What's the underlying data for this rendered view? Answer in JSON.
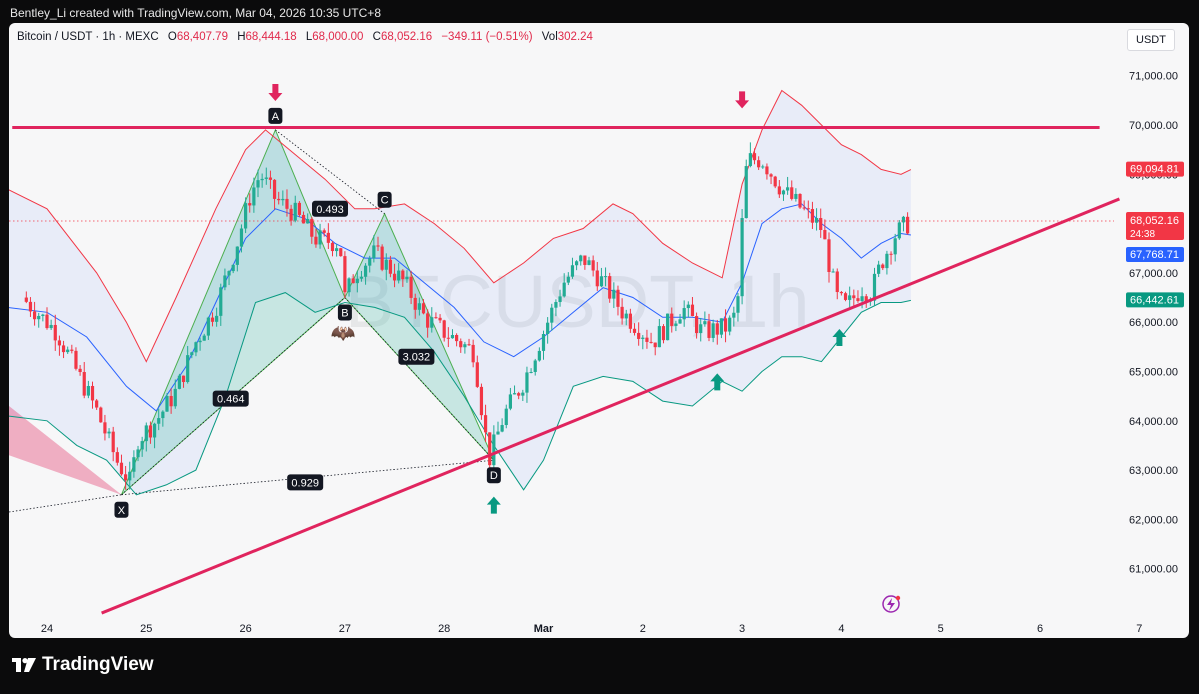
{
  "header": {
    "attribution": "Bentley_Li created with TradingView.com, Mar 04, 2026 10:35 UTC+8"
  },
  "legend": {
    "symbol": "Bitcoin / USDT · 1h · MEXC",
    "open_label": "O",
    "open": "68,407.79",
    "high_label": "H",
    "high": "68,444.18",
    "low_label": "L",
    "low": "68,000.00",
    "close_label": "C",
    "close": "68,052.16",
    "change": "−349.11 (−0.51%)",
    "vol_label": "Vol",
    "vol": "302.24"
  },
  "currency_button": "USDT",
  "watermark": "BTCUSDT, 1h",
  "footer": {
    "brand": "TradingView"
  },
  "colors": {
    "up": "#22ab94",
    "down": "#f23645",
    "pattern_line": "#e0245e",
    "bb_upper": "#f23645",
    "bb_mid": "#2962ff",
    "bb_lower": "#089981",
    "arrow_down": "#e0245e",
    "arrow_up": "#089981"
  },
  "chart_data": {
    "type": "candlestick",
    "symbol": "BTCUSDT",
    "interval": "1h",
    "y_ticks": [
      61000,
      62000,
      63000,
      64000,
      65000,
      66000,
      67000,
      68000,
      69000,
      70000,
      71000
    ],
    "y_tick_labels": [
      "61,000.00",
      "62,000.00",
      "63,000.00",
      "64,000.00",
      "65,000.00",
      "66,000.00",
      "67,000.00",
      "68,000.00",
      "69,000.00",
      "70,000.00",
      "71,000.00"
    ],
    "x_labels": [
      "24",
      "25",
      "26",
      "27",
      "28",
      "Mar",
      "2",
      "3",
      "4",
      "5",
      "6",
      "7"
    ],
    "x_label_days": [
      0,
      1,
      2,
      3,
      4,
      5,
      6,
      7,
      8,
      9,
      10,
      11
    ],
    "price_labels": [
      {
        "value": 69094.81,
        "text": "69,094.81",
        "role": "bb_upper"
      },
      {
        "value": 68052.16,
        "text": "68,052.16",
        "sub": "24:38",
        "role": "last_price"
      },
      {
        "value": 67768.71,
        "text": "67,768.71",
        "role": "bb_mid"
      },
      {
        "value": 66442.61,
        "text": "66,442.61",
        "role": "bb_lower"
      }
    ],
    "price_path": [
      [
        -0.25,
        66500
      ],
      [
        0.1,
        65800
      ],
      [
        0.3,
        65000
      ],
      [
        0.5,
        64200
      ],
      [
        0.7,
        63200
      ],
      [
        0.85,
        62700
      ],
      [
        0.9,
        63600
      ],
      [
        1.1,
        64000
      ],
      [
        1.3,
        64600
      ],
      [
        1.5,
        65600
      ],
      [
        1.7,
        66300
      ],
      [
        1.9,
        67500
      ],
      [
        2.05,
        68600
      ],
      [
        2.15,
        69000
      ],
      [
        2.3,
        68500
      ],
      [
        2.5,
        68200
      ],
      [
        2.7,
        67700
      ],
      [
        2.95,
        67600
      ],
      [
        3.0,
        66500
      ],
      [
        3.1,
        67000
      ],
      [
        3.3,
        67400
      ],
      [
        3.4,
        67200
      ],
      [
        3.6,
        66800
      ],
      [
        3.8,
        66100
      ],
      [
        4.0,
        65800
      ],
      [
        4.3,
        65400
      ],
      [
        4.45,
        63200
      ],
      [
        4.6,
        64100
      ],
      [
        4.8,
        64800
      ],
      [
        5.0,
        65800
      ],
      [
        5.2,
        66800
      ],
      [
        5.4,
        67300
      ],
      [
        5.6,
        66800
      ],
      [
        5.8,
        66200
      ],
      [
        6.1,
        65600
      ],
      [
        6.4,
        66300
      ],
      [
        6.6,
        65800
      ],
      [
        6.85,
        65900
      ],
      [
        6.95,
        66200
      ],
      [
        7.0,
        68000
      ],
      [
        7.05,
        69300
      ],
      [
        7.2,
        69300
      ],
      [
        7.4,
        68700
      ],
      [
        7.6,
        68300
      ],
      [
        7.8,
        67900
      ],
      [
        7.95,
        66500
      ],
      [
        8.05,
        66300
      ],
      [
        8.2,
        66700
      ],
      [
        8.3,
        66600
      ],
      [
        8.4,
        67200
      ],
      [
        8.55,
        67800
      ],
      [
        8.7,
        68050
      ]
    ],
    "bb_upper": [
      [
        -0.4,
        68700
      ],
      [
        0.0,
        68300
      ],
      [
        0.5,
        67000
      ],
      [
        0.8,
        66000
      ],
      [
        1.0,
        65200
      ],
      [
        1.3,
        66500
      ],
      [
        1.7,
        68300
      ],
      [
        2.0,
        69500
      ],
      [
        2.2,
        69900
      ],
      [
        2.5,
        69400
      ],
      [
        2.8,
        68900
      ],
      [
        3.1,
        68300
      ],
      [
        3.3,
        68300
      ],
      [
        3.6,
        68400
      ],
      [
        3.9,
        68000
      ],
      [
        4.2,
        67500
      ],
      [
        4.5,
        66800
      ],
      [
        4.8,
        67200
      ],
      [
        5.1,
        67700
      ],
      [
        5.4,
        67900
      ],
      [
        5.7,
        68400
      ],
      [
        5.9,
        68200
      ],
      [
        6.2,
        67600
      ],
      [
        6.5,
        67200
      ],
      [
        6.8,
        66900
      ],
      [
        7.0,
        68800
      ],
      [
        7.2,
        69900
      ],
      [
        7.4,
        70700
      ],
      [
        7.6,
        70400
      ],
      [
        7.8,
        70000
      ],
      [
        8.0,
        69600
      ],
      [
        8.2,
        69400
      ],
      [
        8.4,
        69100
      ],
      [
        8.6,
        69000
      ],
      [
        8.7,
        69094.81
      ]
    ],
    "bb_middle": [
      [
        -0.4,
        66300
      ],
      [
        0.0,
        66200
      ],
      [
        0.4,
        65700
      ],
      [
        0.8,
        64700
      ],
      [
        1.1,
        64200
      ],
      [
        1.4,
        65100
      ],
      [
        1.7,
        66400
      ],
      [
        2.0,
        67700
      ],
      [
        2.3,
        68300
      ],
      [
        2.6,
        68100
      ],
      [
        2.9,
        67600
      ],
      [
        3.2,
        67300
      ],
      [
        3.5,
        67300
      ],
      [
        3.8,
        66800
      ],
      [
        4.1,
        66300
      ],
      [
        4.4,
        65600
      ],
      [
        4.7,
        65300
      ],
      [
        5.0,
        65700
      ],
      [
        5.3,
        66200
      ],
      [
        5.6,
        66700
      ],
      [
        5.9,
        66500
      ],
      [
        6.2,
        66100
      ],
      [
        6.5,
        66100
      ],
      [
        6.8,
        66000
      ],
      [
        7.0,
        66800
      ],
      [
        7.2,
        68000
      ],
      [
        7.4,
        68300
      ],
      [
        7.6,
        68400
      ],
      [
        7.8,
        68000
      ],
      [
        8.0,
        67700
      ],
      [
        8.2,
        67300
      ],
      [
        8.4,
        67600
      ],
      [
        8.6,
        67800
      ],
      [
        8.7,
        67768.71
      ]
    ],
    "bb_lower": [
      [
        -0.4,
        64100
      ],
      [
        0.0,
        64000
      ],
      [
        0.3,
        63500
      ],
      [
        0.6,
        63200
      ],
      [
        0.9,
        62500
      ],
      [
        1.2,
        62700
      ],
      [
        1.5,
        63000
      ],
      [
        1.8,
        64500
      ],
      [
        2.1,
        66400
      ],
      [
        2.4,
        66600
      ],
      [
        2.7,
        66200
      ],
      [
        3.0,
        66400
      ],
      [
        3.3,
        66300
      ],
      [
        3.6,
        66100
      ],
      [
        3.9,
        65400
      ],
      [
        4.2,
        64500
      ],
      [
        4.5,
        63500
      ],
      [
        4.8,
        62600
      ],
      [
        5.0,
        63200
      ],
      [
        5.3,
        64700
      ],
      [
        5.6,
        64900
      ],
      [
        5.9,
        64800
      ],
      [
        6.2,
        64400
      ],
      [
        6.5,
        64300
      ],
      [
        6.8,
        64800
      ],
      [
        7.0,
        64600
      ],
      [
        7.2,
        65000
      ],
      [
        7.4,
        65300
      ],
      [
        7.6,
        65300
      ],
      [
        7.8,
        65200
      ],
      [
        8.0,
        65700
      ],
      [
        8.2,
        66200
      ],
      [
        8.4,
        66400
      ],
      [
        8.6,
        66400
      ],
      [
        8.7,
        66442.61
      ]
    ],
    "resistance": {
      "y": 69950,
      "x_from": -0.35,
      "x_to": 10.6
    },
    "support_trendline": {
      "from": [
        0.55,
        60100
      ],
      "to": [
        10.8,
        68500
      ]
    },
    "harmonic_pattern": {
      "points": [
        {
          "label": "X",
          "x": 0.75,
          "y": 62500
        },
        {
          "label": "A",
          "x": 2.3,
          "y": 69900
        },
        {
          "label": "B",
          "x": 3.0,
          "y": 66500
        },
        {
          "label": "C",
          "x": 3.4,
          "y": 68200
        },
        {
          "label": "D",
          "x": 4.5,
          "y": 63200
        }
      ],
      "ratios": [
        {
          "text": "0.493",
          "x": 2.85,
          "y": 68300
        },
        {
          "text": "0.464",
          "x": 1.85,
          "y": 64450
        },
        {
          "text": "3.032",
          "x": 3.72,
          "y": 65300
        },
        {
          "text": "0.929",
          "x": 2.6,
          "y": 62750
        }
      ]
    },
    "markers": [
      {
        "dir": "down",
        "x": 2.3,
        "y": 70650
      },
      {
        "dir": "down",
        "x": 7.0,
        "y": 70500
      },
      {
        "dir": "up",
        "x": 4.5,
        "y": 62300
      },
      {
        "dir": "up",
        "x": 6.75,
        "y": 64800
      },
      {
        "dir": "up",
        "x": 7.98,
        "y": 65700
      }
    ]
  }
}
